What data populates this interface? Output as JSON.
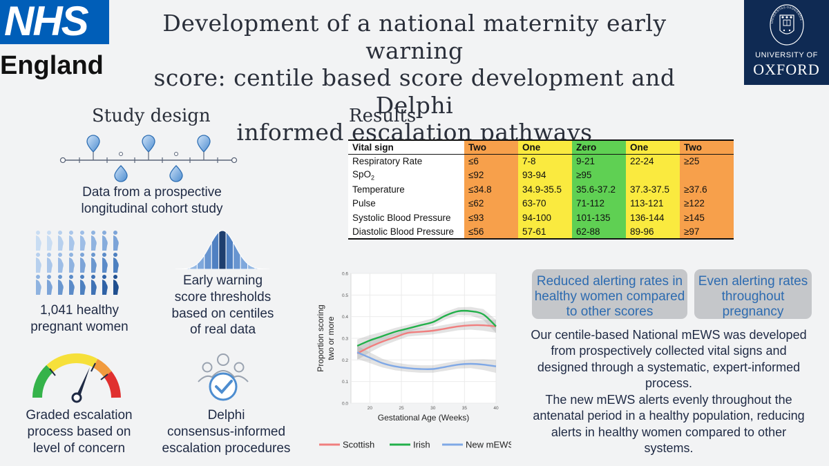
{
  "header": {
    "nhs_logo": "NHS",
    "nhs_region": "England",
    "title_lines": [
      "Development of a national maternity early warning",
      "score: centile based score development and Delphi",
      "informed escalation pathways"
    ],
    "oxford_line1": "UNIVERSITY OF",
    "oxford_line2": "OXFORD",
    "oxford_crest_text": "UNIVERSITAS OXONIENSIS · DOMINUS ILLUMINATIO MEA"
  },
  "study_design": {
    "heading": "Study design",
    "cohort_caption_lines": [
      "Data from a prospective",
      "longitudinal cohort study"
    ],
    "women_caption_lines": [
      "1,041 healthy",
      "pregnant women"
    ],
    "thresholds_caption_lines": [
      "Early warning",
      "score thresholds",
      "based on centiles",
      "of real data"
    ],
    "escalation_caption_lines": [
      "Graded escalation",
      "process based on",
      "level of concern"
    ],
    "delphi_caption_lines": [
      "Delphi",
      "consensus-informed",
      "escalation procedures"
    ],
    "icons": [
      "timeline-pins-icon",
      "pregnant-women-grid-icon",
      "bell-curve-icon",
      "gauge-icon",
      "consensus-check-icon"
    ]
  },
  "results": {
    "heading": "Results",
    "table": {
      "headers": [
        "Vital sign",
        "Two",
        "One",
        "Zero",
        "One",
        "Two"
      ],
      "rows": [
        {
          "label": "Respiratory Rate",
          "sub": "",
          "values": [
            "≤6",
            "7-8",
            "9-21",
            "22-24",
            "≥25"
          ]
        },
        {
          "label": "SpO",
          "sub": "2",
          "values": [
            "≤92",
            "93-94",
            "≥95",
            "",
            ""
          ]
        },
        {
          "label": "Temperature",
          "sub": "",
          "values": [
            "≤34.8",
            "34.9-35.5",
            "35.6-37.2",
            "37.3-37.5",
            "≥37.6"
          ]
        },
        {
          "label": "Pulse",
          "sub": "",
          "values": [
            "≤62",
            "63-70",
            "71-112",
            "113-121",
            "≥122"
          ]
        },
        {
          "label": "Systolic Blood Pressure",
          "sub": "",
          "values": [
            "≤93",
            "94-100",
            "101-135",
            "136-144",
            "≥145"
          ]
        },
        {
          "label": "Diastolic Blood Pressure",
          "sub": "",
          "values": [
            "≤56",
            "57-61",
            "62-88",
            "89-96",
            "≥97"
          ]
        }
      ]
    },
    "pill_reduced_lines": [
      "Reduced alerting rates in",
      "healthy women compared",
      "to other scores"
    ],
    "pill_even_lines": [
      "Even alerting rates",
      "throughout",
      "pregnancy"
    ],
    "summary_p1_lines": [
      "Our centile-based National mEWS was developed",
      "from prospectively collected vital signs and",
      "designed through a systematic, expert-informed",
      "process."
    ],
    "summary_p2_lines": [
      "The new mEWS alerts evenly throughout the",
      "antenatal period in a healthy population, reducing",
      "alerts in healthy women compared to other",
      "systems."
    ]
  },
  "colors": {
    "two": "#f7a04b",
    "one": "#faea3f",
    "zero": "#5fd053",
    "nhs_blue": "#005eb8",
    "oxford_navy": "#0f2a53",
    "scottish": "#f07e7e",
    "irish": "#22b04a",
    "new_mews": "#7fa8e6"
  },
  "chart_data": {
    "type": "line",
    "title": "",
    "xlabel": "Gestational Age (Weeks)",
    "ylabel_lines": [
      "Proportion scoring",
      "two or more"
    ],
    "xlim": [
      17,
      40
    ],
    "ylim": [
      0,
      0.6
    ],
    "xticks": [
      20,
      25,
      30,
      35,
      40
    ],
    "yticks": [
      0.0,
      0.1,
      0.2,
      0.3,
      0.4,
      0.5,
      0.6
    ],
    "xtick_labels": [
      "20",
      "25",
      "30",
      "35",
      "40"
    ],
    "ytick_labels": [
      "0.0",
      "0.1",
      "0.2",
      "0.3",
      "0.4",
      "0.5",
      "0.6"
    ],
    "grid": true,
    "legend_position": "bottom",
    "series": [
      {
        "name": "Scottish",
        "color": "#f07e7e",
        "x": [
          18,
          20,
          22,
          24,
          26,
          28,
          30,
          32,
          34,
          36,
          38,
          40
        ],
        "y": [
          0.23,
          0.26,
          0.285,
          0.305,
          0.325,
          0.33,
          0.335,
          0.345,
          0.355,
          0.36,
          0.36,
          0.355
        ],
        "band": [
          0.03,
          0.025,
          0.02,
          0.018,
          0.017,
          0.017,
          0.017,
          0.018,
          0.018,
          0.02,
          0.025,
          0.03
        ]
      },
      {
        "name": "Irish",
        "color": "#22b04a",
        "x": [
          18,
          20,
          22,
          24,
          26,
          28,
          30,
          32,
          34,
          36,
          38,
          40
        ],
        "y": [
          0.265,
          0.29,
          0.31,
          0.33,
          0.345,
          0.36,
          0.375,
          0.405,
          0.425,
          0.425,
          0.41,
          0.355
        ],
        "band": [
          0.03,
          0.025,
          0.02,
          0.018,
          0.017,
          0.017,
          0.017,
          0.018,
          0.018,
          0.02,
          0.025,
          0.03
        ]
      },
      {
        "name": "New mEWS",
        "color": "#7fa8e6",
        "x": [
          18,
          20,
          22,
          24,
          26,
          28,
          30,
          32,
          34,
          36,
          38,
          40
        ],
        "y": [
          0.235,
          0.21,
          0.185,
          0.17,
          0.162,
          0.158,
          0.158,
          0.168,
          0.178,
          0.182,
          0.178,
          0.17
        ],
        "band": [
          0.03,
          0.025,
          0.02,
          0.018,
          0.017,
          0.017,
          0.017,
          0.018,
          0.018,
          0.02,
          0.025,
          0.03
        ]
      }
    ]
  }
}
